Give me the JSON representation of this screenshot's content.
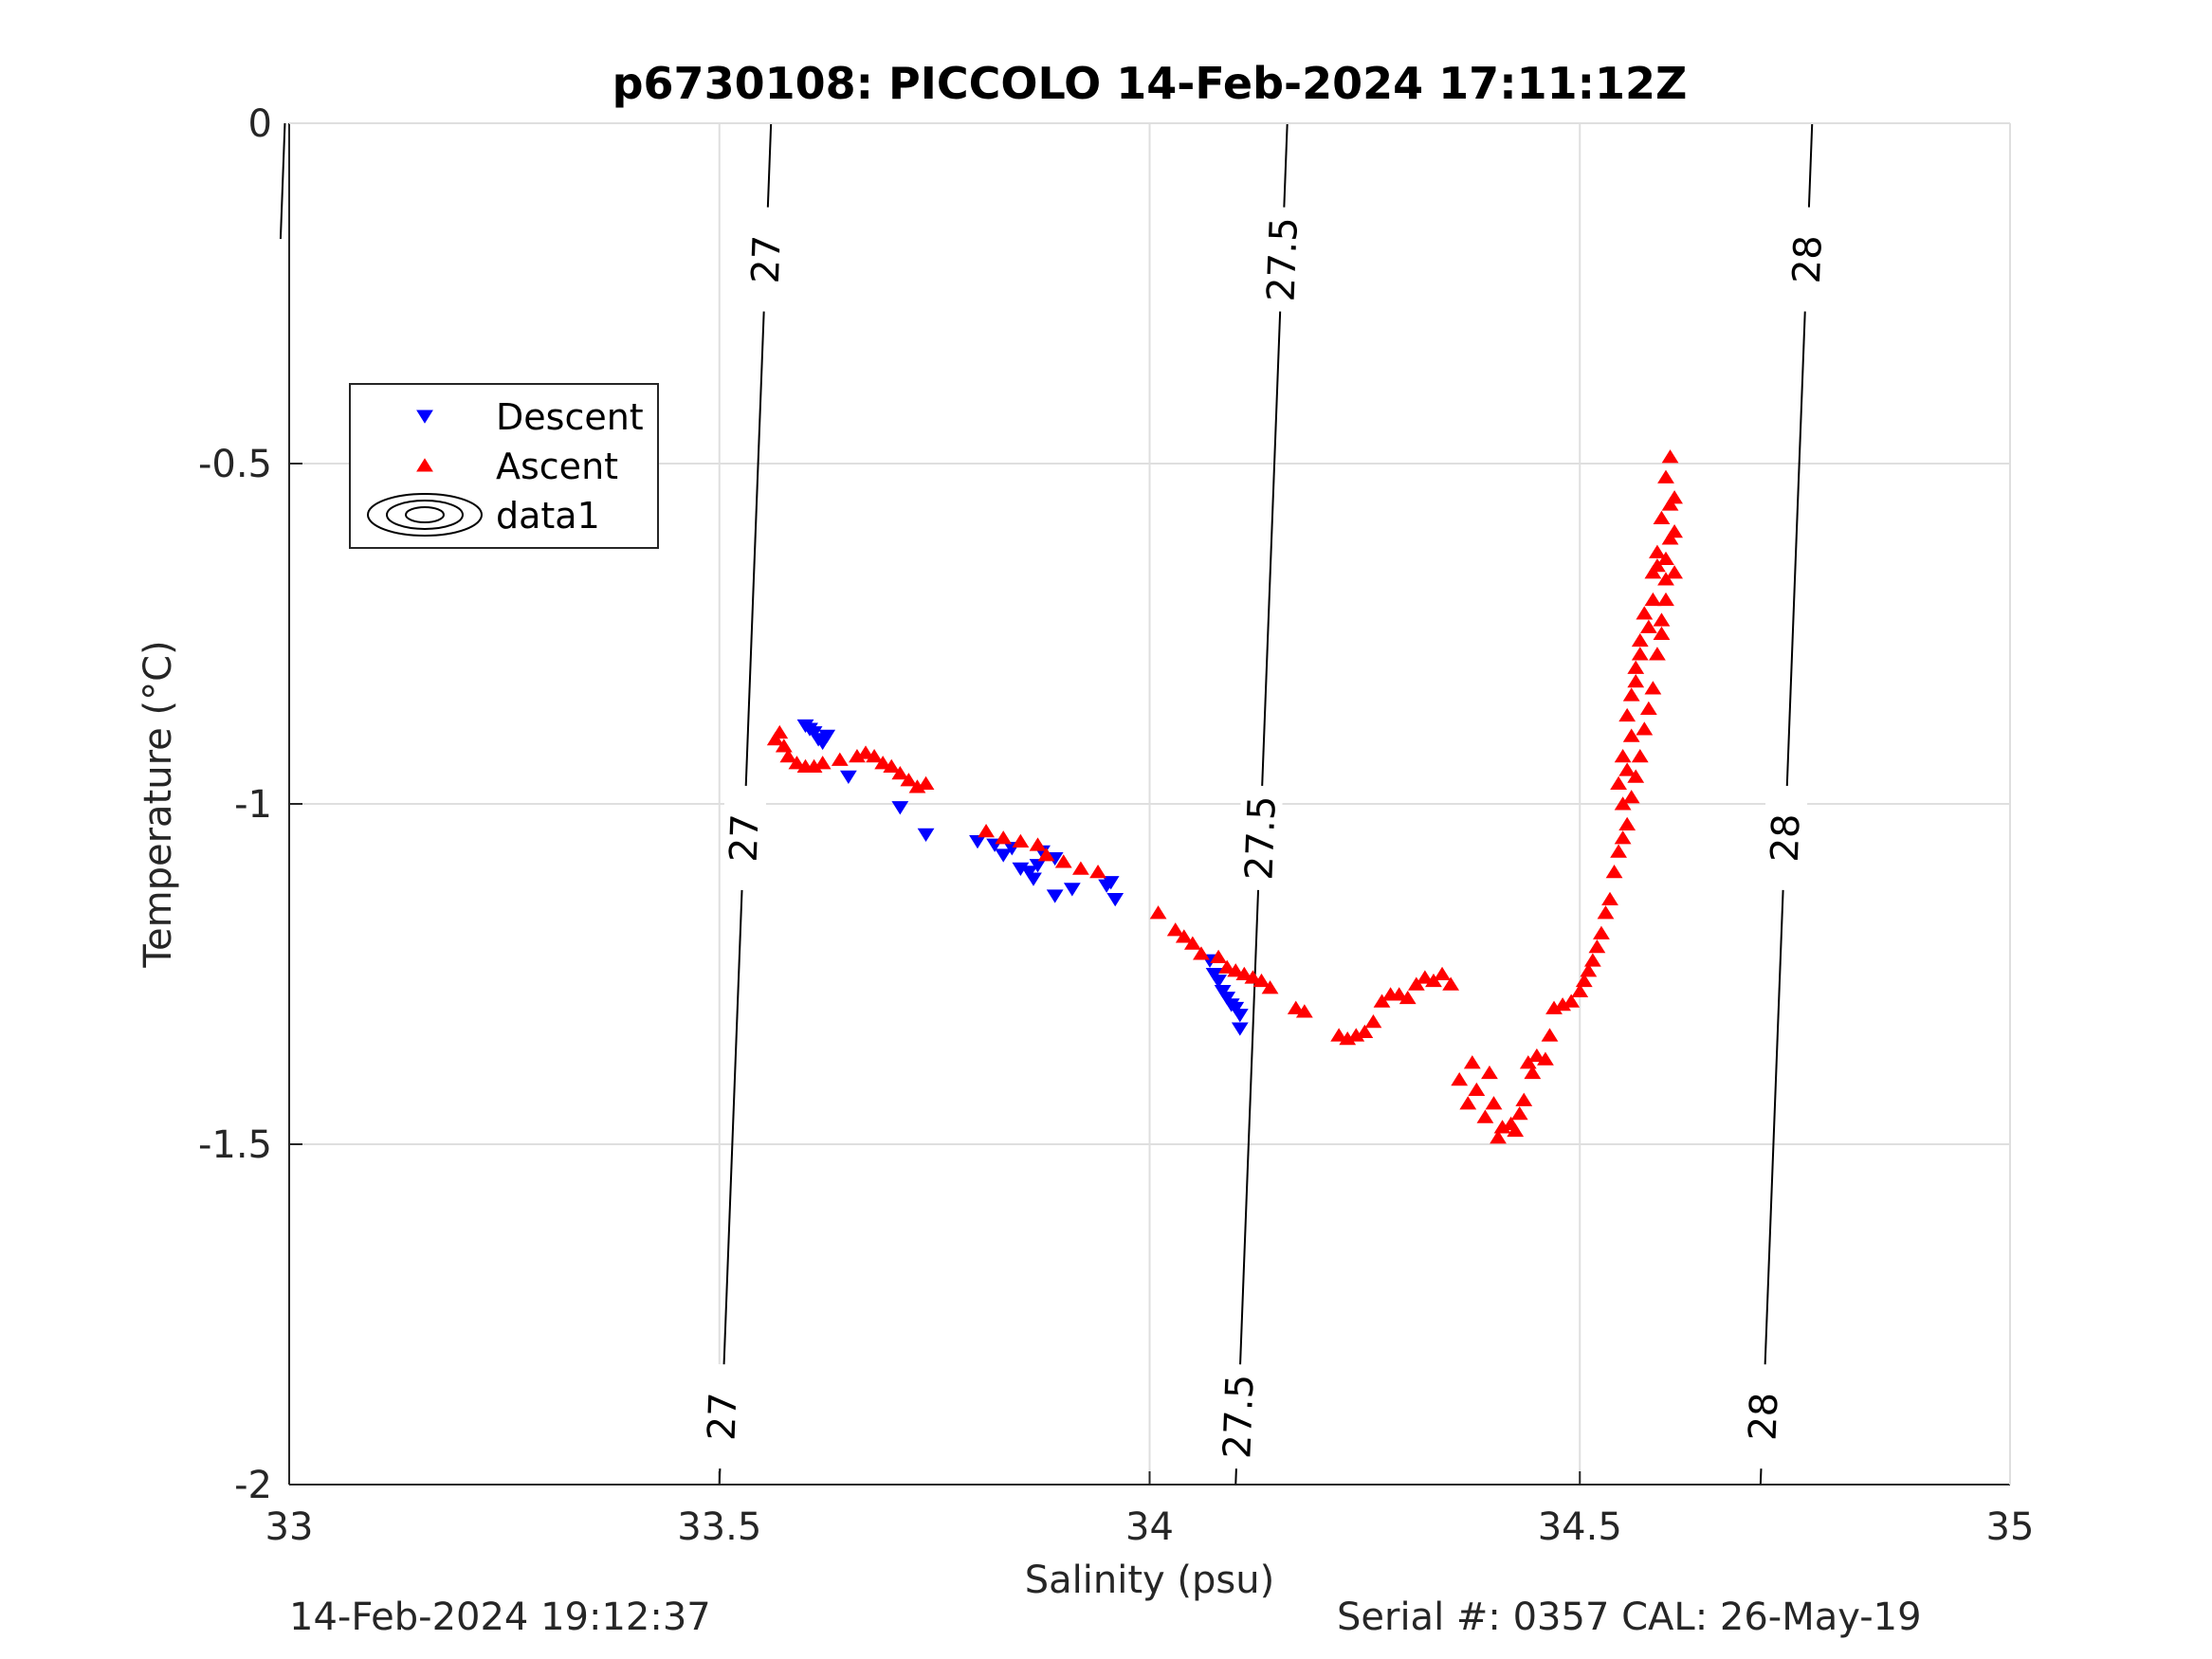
{
  "chart_data": {
    "type": "scatter",
    "title": "p6730108: PICCOLO 14-Feb-2024 17:11:12Z",
    "xlabel": "Salinity (psu)",
    "ylabel": "Temperature (°C)",
    "xlim": [
      33,
      35
    ],
    "ylim": [
      -2,
      0
    ],
    "xticks": [
      "33",
      "33.5",
      "34",
      "34.5",
      "35"
    ],
    "yticks": [
      "0",
      "-0.5",
      "-1",
      "-1.5",
      "-2"
    ],
    "grid": true,
    "legend_position": "upper-left",
    "legend": [
      "Descent",
      "Ascent",
      "data1"
    ],
    "series": [
      {
        "name": "Descent",
        "marker": "triangle-down",
        "color": "#0000ff",
        "points": [
          [
            33.6,
            -0.885
          ],
          [
            33.605,
            -0.89
          ],
          [
            33.61,
            -0.895
          ],
          [
            33.615,
            -0.905
          ],
          [
            33.62,
            -0.91
          ],
          [
            33.625,
            -0.9
          ],
          [
            33.65,
            -0.96
          ],
          [
            33.71,
            -1.005
          ],
          [
            33.74,
            -1.045
          ],
          [
            33.8,
            -1.055
          ],
          [
            33.82,
            -1.06
          ],
          [
            33.83,
            -1.075
          ],
          [
            33.84,
            -1.065
          ],
          [
            33.85,
            -1.095
          ],
          [
            33.86,
            -1.1
          ],
          [
            33.865,
            -1.11
          ],
          [
            33.87,
            -1.09
          ],
          [
            33.875,
            -1.07
          ],
          [
            33.89,
            -1.08
          ],
          [
            33.89,
            -1.135
          ],
          [
            33.91,
            -1.125
          ],
          [
            33.95,
            -1.12
          ],
          [
            33.955,
            -1.115
          ],
          [
            33.96,
            -1.14
          ],
          [
            34.07,
            -1.23
          ],
          [
            34.075,
            -1.25
          ],
          [
            34.08,
            -1.26
          ],
          [
            34.085,
            -1.275
          ],
          [
            34.09,
            -1.285
          ],
          [
            34.095,
            -1.295
          ],
          [
            34.1,
            -1.3
          ],
          [
            34.105,
            -1.31
          ],
          [
            34.105,
            -1.33
          ]
        ]
      },
      {
        "name": "Ascent",
        "marker": "triangle-up",
        "color": "#ff0000",
        "points": [
          [
            33.565,
            -0.905
          ],
          [
            33.57,
            -0.895
          ],
          [
            33.575,
            -0.915
          ],
          [
            33.58,
            -0.93
          ],
          [
            33.59,
            -0.94
          ],
          [
            33.6,
            -0.945
          ],
          [
            33.61,
            -0.945
          ],
          [
            33.62,
            -0.94
          ],
          [
            33.64,
            -0.935
          ],
          [
            33.66,
            -0.93
          ],
          [
            33.67,
            -0.925
          ],
          [
            33.68,
            -0.93
          ],
          [
            33.69,
            -0.94
          ],
          [
            33.7,
            -0.945
          ],
          [
            33.71,
            -0.955
          ],
          [
            33.72,
            -0.965
          ],
          [
            33.73,
            -0.975
          ],
          [
            33.74,
            -0.97
          ],
          [
            33.81,
            -1.04
          ],
          [
            33.83,
            -1.05
          ],
          [
            33.85,
            -1.055
          ],
          [
            33.87,
            -1.06
          ],
          [
            33.88,
            -1.075
          ],
          [
            33.9,
            -1.085
          ],
          [
            33.92,
            -1.095
          ],
          [
            33.94,
            -1.1
          ],
          [
            34.01,
            -1.16
          ],
          [
            34.03,
            -1.185
          ],
          [
            34.04,
            -1.195
          ],
          [
            34.05,
            -1.205
          ],
          [
            34.06,
            -1.22
          ],
          [
            34.08,
            -1.225
          ],
          [
            34.09,
            -1.24
          ],
          [
            34.1,
            -1.245
          ],
          [
            34.11,
            -1.25
          ],
          [
            34.12,
            -1.255
          ],
          [
            34.13,
            -1.26
          ],
          [
            34.14,
            -1.27
          ],
          [
            34.17,
            -1.3
          ],
          [
            34.18,
            -1.305
          ],
          [
            34.22,
            -1.34
          ],
          [
            34.23,
            -1.345
          ],
          [
            34.24,
            -1.34
          ],
          [
            34.25,
            -1.335
          ],
          [
            34.26,
            -1.32
          ],
          [
            34.27,
            -1.29
          ],
          [
            34.28,
            -1.28
          ],
          [
            34.29,
            -1.28
          ],
          [
            34.3,
            -1.285
          ],
          [
            34.31,
            -1.265
          ],
          [
            34.32,
            -1.255
          ],
          [
            34.33,
            -1.26
          ],
          [
            34.34,
            -1.25
          ],
          [
            34.35,
            -1.265
          ],
          [
            34.36,
            -1.405
          ],
          [
            34.37,
            -1.44
          ],
          [
            34.375,
            -1.38
          ],
          [
            34.38,
            -1.42
          ],
          [
            34.39,
            -1.46
          ],
          [
            34.395,
            -1.395
          ],
          [
            34.4,
            -1.44
          ],
          [
            34.405,
            -1.49
          ],
          [
            34.41,
            -1.475
          ],
          [
            34.42,
            -1.47
          ],
          [
            34.425,
            -1.48
          ],
          [
            34.43,
            -1.455
          ],
          [
            34.435,
            -1.435
          ],
          [
            34.44,
            -1.38
          ],
          [
            34.445,
            -1.395
          ],
          [
            34.45,
            -1.37
          ],
          [
            34.46,
            -1.375
          ],
          [
            34.465,
            -1.34
          ],
          [
            34.47,
            -1.3
          ],
          [
            34.48,
            -1.295
          ],
          [
            34.49,
            -1.29
          ],
          [
            34.5,
            -1.275
          ],
          [
            34.505,
            -1.26
          ],
          [
            34.51,
            -1.245
          ],
          [
            34.515,
            -1.23
          ],
          [
            34.52,
            -1.21
          ],
          [
            34.525,
            -1.19
          ],
          [
            34.53,
            -1.16
          ],
          [
            34.535,
            -1.14
          ],
          [
            34.54,
            -1.1
          ],
          [
            34.545,
            -1.07
          ],
          [
            34.55,
            -1.05
          ],
          [
            34.555,
            -1.03
          ],
          [
            34.56,
            -0.99
          ],
          [
            34.565,
            -0.96
          ],
          [
            34.57,
            -0.93
          ],
          [
            34.575,
            -0.89
          ],
          [
            34.58,
            -0.86
          ],
          [
            34.585,
            -0.83
          ],
          [
            34.59,
            -0.78
          ],
          [
            34.595,
            -0.73
          ],
          [
            34.6,
            -0.67
          ],
          [
            34.605,
            -0.61
          ],
          [
            34.61,
            -0.55
          ],
          [
            34.605,
            -0.49
          ],
          [
            34.6,
            -0.52
          ],
          [
            34.595,
            -0.58
          ],
          [
            34.59,
            -0.65
          ],
          [
            34.585,
            -0.7
          ],
          [
            34.58,
            -0.74
          ],
          [
            34.57,
            -0.78
          ],
          [
            34.565,
            -0.8
          ],
          [
            34.56,
            -0.84
          ],
          [
            34.555,
            -0.87
          ],
          [
            34.55,
            -0.93
          ],
          [
            34.545,
            -0.97
          ],
          [
            34.55,
            -1.0
          ],
          [
            34.555,
            -0.95
          ],
          [
            34.56,
            -0.9
          ],
          [
            34.565,
            -0.82
          ],
          [
            34.57,
            -0.76
          ],
          [
            34.575,
            -0.72
          ],
          [
            34.585,
            -0.66
          ],
          [
            34.59,
            -0.63
          ],
          [
            34.6,
            -0.64
          ],
          [
            34.61,
            -0.66
          ],
          [
            34.61,
            -0.6
          ],
          [
            34.605,
            -0.56
          ],
          [
            34.6,
            -0.7
          ],
          [
            34.595,
            -0.75
          ]
        ]
      },
      {
        "name": "data1",
        "type": "density-contours",
        "color": "#000000",
        "contours": [
          {
            "level": "27",
            "points": [
              [
                33.56,
                0
              ],
              [
                33.5,
                -2
              ]
            ],
            "labels_at": [
              -0.2,
              -1.05,
              -1.9
            ]
          },
          {
            "level": "27.5",
            "points": [
              [
                34.16,
                0
              ],
              [
                34.1,
                -2
              ]
            ],
            "labels_at": [
              -0.2,
              -1.05,
              -1.9
            ]
          },
          {
            "level": "28",
            "points": [
              [
                34.77,
                0
              ],
              [
                34.71,
                -2
              ]
            ],
            "labels_at": [
              -0.2,
              -1.05,
              -1.9
            ]
          }
        ],
        "edge_line": {
          "points": [
            [
              32.995,
              0
            ],
            [
              32.99,
              -0.17
            ]
          ]
        }
      }
    ]
  },
  "footer": {
    "timestamp": "14-Feb-2024 19:12:37",
    "serial": "Serial #: 0357  CAL: 26-May-19"
  }
}
